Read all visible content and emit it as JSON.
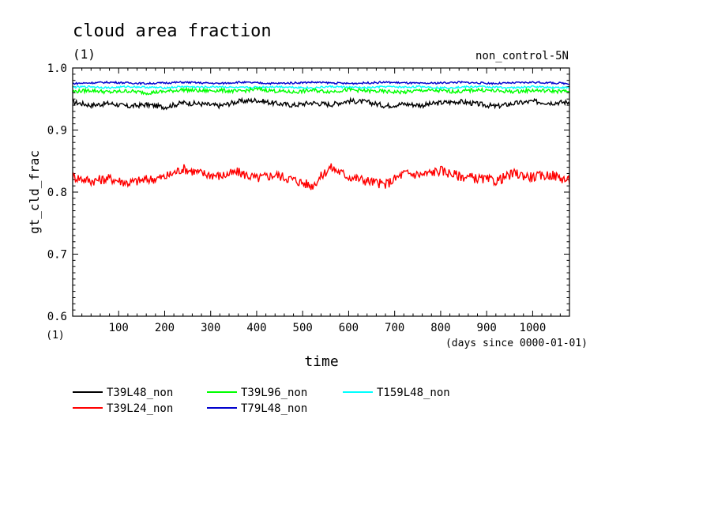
{
  "chart_data": {
    "type": "line",
    "title": "cloud area fraction",
    "subtitle": "(1)",
    "experiment_label": "non_control-5N",
    "xlabel": "time",
    "xunits": "(days since 0000-01-01)",
    "ylabel": "gt_cld_frac",
    "yunits": "(1)",
    "xlim": [
      0,
      1080
    ],
    "ylim": [
      0.6,
      1.0
    ],
    "xticks": [
      100,
      200,
      300,
      400,
      500,
      600,
      700,
      800,
      900,
      1000
    ],
    "xtick_labels": [
      "100",
      "200",
      "300",
      "400",
      "500",
      "600",
      "700",
      "800",
      "900",
      "1000"
    ],
    "yticks": [
      0.6,
      0.7,
      0.8,
      0.9,
      1.0
    ],
    "ytick_labels": [
      "0.6",
      "0.7",
      "0.8",
      "0.9",
      "1.0"
    ],
    "grid": false,
    "legend_position": "below",
    "series": [
      {
        "name": "T39L48_non",
        "color": "#000000",
        "x": [
          0,
          40,
          80,
          120,
          160,
          200,
          240,
          280,
          320,
          360,
          400,
          440,
          480,
          520,
          560,
          600,
          640,
          680,
          720,
          760,
          800,
          840,
          880,
          920,
          960,
          1000,
          1040,
          1080
        ],
        "y": [
          0.945,
          0.94,
          0.943,
          0.938,
          0.941,
          0.937,
          0.944,
          0.942,
          0.939,
          0.946,
          0.948,
          0.943,
          0.94,
          0.944,
          0.941,
          0.947,
          0.945,
          0.939,
          0.942,
          0.94,
          0.944,
          0.946,
          0.942,
          0.938,
          0.943,
          0.946,
          0.944,
          0.945
        ]
      },
      {
        "name": "T39L24_non",
        "color": "#ff0000",
        "x": [
          0,
          40,
          80,
          120,
          160,
          200,
          240,
          280,
          320,
          360,
          400,
          440,
          480,
          520,
          560,
          600,
          640,
          680,
          720,
          760,
          800,
          840,
          880,
          920,
          960,
          1000,
          1040,
          1080
        ],
        "y": [
          0.825,
          0.818,
          0.822,
          0.815,
          0.82,
          0.824,
          0.838,
          0.83,
          0.826,
          0.832,
          0.822,
          0.828,
          0.82,
          0.81,
          0.84,
          0.825,
          0.818,
          0.812,
          0.83,
          0.828,
          0.835,
          0.826,
          0.822,
          0.818,
          0.83,
          0.824,
          0.828,
          0.818
        ]
      },
      {
        "name": "T39L96_non",
        "color": "#00ff00",
        "x": [
          0,
          40,
          80,
          120,
          160,
          200,
          240,
          280,
          320,
          360,
          400,
          440,
          480,
          520,
          560,
          600,
          640,
          680,
          720,
          760,
          800,
          840,
          880,
          920,
          960,
          1000,
          1040,
          1080
        ],
        "y": [
          0.962,
          0.964,
          0.961,
          0.963,
          0.96,
          0.962,
          0.965,
          0.963,
          0.964,
          0.962,
          0.966,
          0.963,
          0.961,
          0.964,
          0.962,
          0.965,
          0.963,
          0.962,
          0.961,
          0.964,
          0.963,
          0.962,
          0.965,
          0.963,
          0.962,
          0.964,
          0.963,
          0.962
        ]
      },
      {
        "name": "T79L48_non",
        "color": "#0000cc",
        "x": [
          0,
          40,
          80,
          120,
          160,
          200,
          240,
          280,
          320,
          360,
          400,
          440,
          480,
          520,
          560,
          600,
          640,
          680,
          720,
          760,
          800,
          840,
          880,
          920,
          960,
          1000,
          1040,
          1080
        ],
        "y": [
          0.975,
          0.976,
          0.977,
          0.976,
          0.975,
          0.976,
          0.977,
          0.976,
          0.975,
          0.977,
          0.976,
          0.975,
          0.976,
          0.977,
          0.976,
          0.975,
          0.976,
          0.977,
          0.976,
          0.975,
          0.976,
          0.977,
          0.976,
          0.975,
          0.976,
          0.977,
          0.976,
          0.975
        ]
      },
      {
        "name": "T159L48_non",
        "color": "#00ffff",
        "x": [
          0,
          40,
          80,
          120,
          160,
          200,
          240,
          280,
          320,
          360,
          400,
          440,
          480,
          520,
          560,
          600,
          640,
          680,
          720,
          760,
          800,
          840,
          880,
          920,
          960,
          1000,
          1040,
          1080
        ],
        "y": [
          0.969,
          0.97,
          0.968,
          0.97,
          0.969,
          0.968,
          0.97,
          0.969,
          0.97,
          0.968,
          0.969,
          0.97,
          0.969,
          0.968,
          0.97,
          0.969,
          0.968,
          0.97,
          0.969,
          0.97,
          0.968,
          0.969,
          0.97,
          0.969,
          0.968,
          0.97,
          0.969,
          0.968
        ]
      }
    ]
  }
}
